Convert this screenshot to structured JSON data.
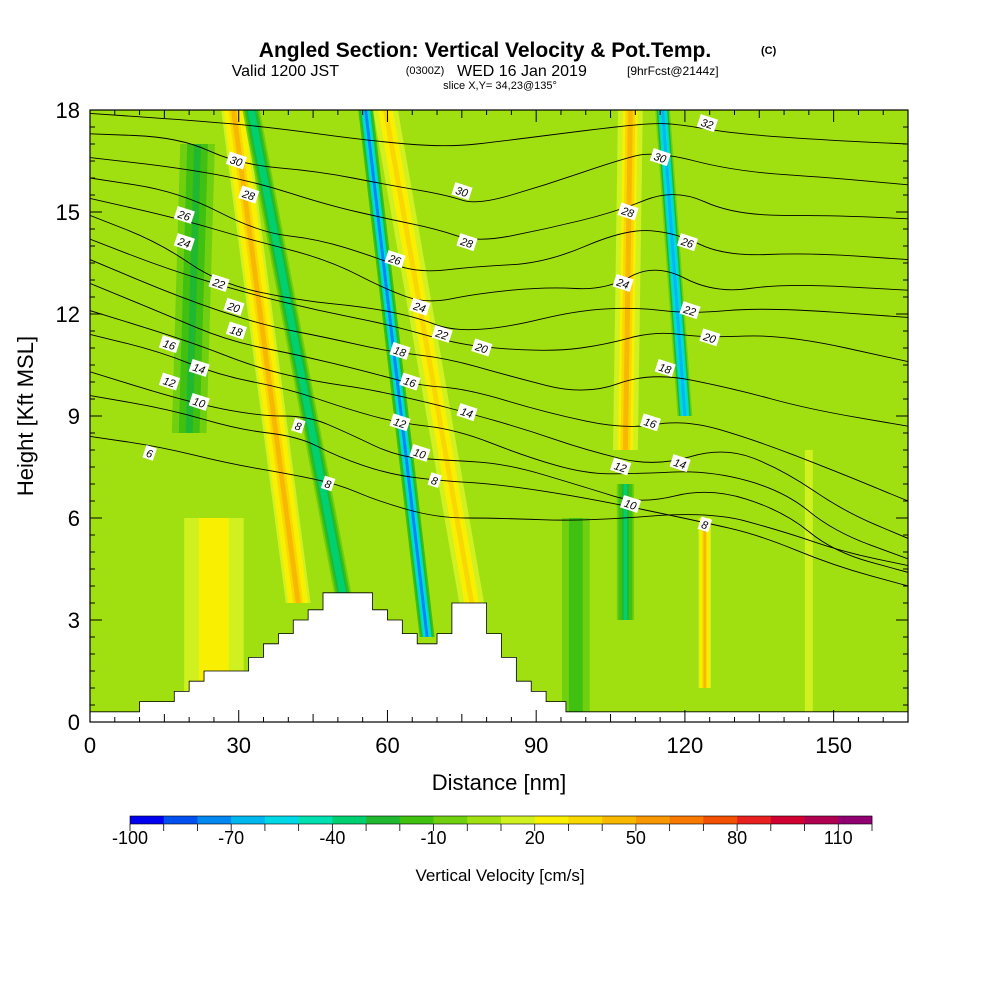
{
  "title": {
    "main": "Angled Section: Vertical Velocity & Pot.Temp.",
    "copyright": "(C)",
    "valid_prefix": "Valid 1200 JST",
    "valid_zulu": "(0300Z)",
    "valid_date": "WED 16 Jan 2019",
    "forecast": "[9hrFcst@2144z]",
    "slice": "slice X,Y= 34,23@135°"
  },
  "chart_data": {
    "type": "heatmap",
    "xlabel": "Distance [nm]",
    "ylabel": "Height [Kft MSL]",
    "xlim": [
      0,
      165
    ],
    "ylim": [
      0,
      18
    ],
    "x_ticks": [
      0,
      30,
      60,
      90,
      120,
      150
    ],
    "y_ticks": [
      0,
      3,
      6,
      9,
      12,
      15,
      18
    ],
    "colorbar": {
      "label": "Vertical Velocity [cm/s]",
      "min": -100,
      "max": 120,
      "step": 10,
      "tick_labels": [
        "-100",
        "-70",
        "-40",
        "-10",
        "20",
        "50",
        "80",
        "110"
      ],
      "colors": [
        "#0000f0",
        "#0050f0",
        "#0088f0",
        "#00b8f0",
        "#00d8e8",
        "#00e0b0",
        "#00d070",
        "#20b830",
        "#40c010",
        "#70d010",
        "#a0e010",
        "#d0f020",
        "#f8f000",
        "#f8d800",
        "#f8b800",
        "#f89800",
        "#f87800",
        "#f05000",
        "#e82020",
        "#d00030",
        "#b00050",
        "#900070"
      ]
    },
    "terrain": [
      [
        0,
        0.3
      ],
      [
        10,
        0.3
      ],
      [
        10,
        0.6
      ],
      [
        17,
        0.6
      ],
      [
        17,
        0.9
      ],
      [
        20,
        0.9
      ],
      [
        20,
        1.2
      ],
      [
        23,
        1.2
      ],
      [
        23,
        1.5
      ],
      [
        32,
        1.5
      ],
      [
        32,
        1.9
      ],
      [
        35,
        1.9
      ],
      [
        35,
        2.3
      ],
      [
        38,
        2.3
      ],
      [
        38,
        2.6
      ],
      [
        41,
        2.6
      ],
      [
        41,
        3.0
      ],
      [
        44,
        3.0
      ],
      [
        44,
        3.3
      ],
      [
        47,
        3.3
      ],
      [
        47,
        3.8
      ],
      [
        57,
        3.8
      ],
      [
        57,
        3.3
      ],
      [
        60,
        3.3
      ],
      [
        60,
        3.0
      ],
      [
        63,
        3.0
      ],
      [
        63,
        2.6
      ],
      [
        66,
        2.6
      ],
      [
        66,
        2.3
      ],
      [
        70,
        2.3
      ],
      [
        70,
        2.6
      ],
      [
        73,
        2.6
      ],
      [
        73,
        3.5
      ],
      [
        80,
        3.5
      ],
      [
        80,
        2.6
      ],
      [
        83,
        2.6
      ],
      [
        83,
        1.9
      ],
      [
        86,
        1.9
      ],
      [
        86,
        1.2
      ],
      [
        89,
        1.2
      ],
      [
        89,
        0.9
      ],
      [
        92,
        0.9
      ],
      [
        92,
        0.6
      ],
      [
        96,
        0.6
      ],
      [
        96,
        0.3
      ],
      [
        165,
        0.3
      ]
    ],
    "velocity_features": [
      {
        "x": 52,
        "y0": 3.0,
        "y1": 18,
        "slope": -1.3,
        "width": 3.5,
        "value": -40
      },
      {
        "x": 68,
        "y0": 2.5,
        "y1": 18,
        "slope": -0.8,
        "width": 3.0,
        "value": -75
      },
      {
        "x": 120,
        "y0": 9.0,
        "y1": 18,
        "slope": -0.5,
        "width": 3.0,
        "value": -70
      },
      {
        "x": 42,
        "y0": 3.5,
        "y1": 18,
        "slope": -0.9,
        "width": 5.0,
        "value": 45
      },
      {
        "x": 77,
        "y0": 3.5,
        "y1": 18,
        "slope": -1.2,
        "width": 5.0,
        "value": 30
      },
      {
        "x": 108,
        "y0": 8.0,
        "y1": 18,
        "slope": 0.1,
        "width": 5.0,
        "value": 40
      },
      {
        "x": 124,
        "y0": 1.0,
        "y1": 6.0,
        "slope": 0.0,
        "width": 2.5,
        "value": 45
      },
      {
        "x": 25,
        "y0": 0.3,
        "y1": 6.0,
        "slope": 0.0,
        "width": 15.0,
        "value": 25
      },
      {
        "x": 20,
        "y0": 8.5,
        "y1": 17,
        "slope": 0.2,
        "width": 7.0,
        "value": -25
      },
      {
        "x": 98,
        "y0": 0.3,
        "y1": 6.0,
        "slope": 0.0,
        "width": 7.0,
        "value": -20
      },
      {
        "x": 108,
        "y0": 3.0,
        "y1": 7.0,
        "slope": 0.0,
        "width": 3.5,
        "value": -35
      },
      {
        "x": 145,
        "y0": 0.3,
        "y1": 8.0,
        "slope": 0.0,
        "width": 8.0,
        "value": 10
      }
    ],
    "isentropes": [
      {
        "level": 6,
        "points": [
          [
            0,
            8.4
          ],
          [
            14,
            8.1
          ],
          [
            28,
            7.6
          ],
          [
            40,
            7.3
          ],
          [
            50,
            7.0
          ],
          [
            58,
            6.5
          ],
          [
            70,
            6.0
          ],
          [
            82,
            6.0
          ],
          [
            100,
            5.9
          ],
          [
            125,
            6.2
          ],
          [
            140,
            5.6
          ],
          [
            152,
            5.0
          ],
          [
            165,
            4.6
          ]
        ]
      },
      {
        "level": 8,
        "points": [
          [
            0,
            9.6
          ],
          [
            16,
            9.2
          ],
          [
            30,
            8.6
          ],
          [
            42,
            8.4
          ],
          [
            50,
            7.8
          ],
          [
            60,
            7.3
          ],
          [
            70,
            7.1
          ],
          [
            82,
            7.0
          ],
          [
            100,
            6.6
          ],
          [
            123,
            5.9
          ],
          [
            135,
            5.5
          ],
          [
            150,
            4.6
          ],
          [
            165,
            4.0
          ]
        ]
      },
      {
        "level": 10,
        "points": [
          [
            0,
            10.3
          ],
          [
            20,
            9.4
          ],
          [
            34,
            9.0
          ],
          [
            44,
            9.0
          ],
          [
            52,
            8.5
          ],
          [
            62,
            7.8
          ],
          [
            72,
            7.7
          ],
          [
            84,
            7.6
          ],
          [
            100,
            6.9
          ],
          [
            111,
            6.4
          ],
          [
            125,
            6.9
          ],
          [
            140,
            6.2
          ],
          [
            150,
            5.0
          ],
          [
            165,
            4.4
          ]
        ]
      },
      {
        "level": 12,
        "points": [
          [
            0,
            11.4
          ],
          [
            14,
            10.9
          ],
          [
            26,
            10.2
          ],
          [
            40,
            9.8
          ],
          [
            52,
            9.2
          ],
          [
            62,
            8.8
          ],
          [
            74,
            8.6
          ],
          [
            88,
            7.8
          ],
          [
            100,
            7.3
          ],
          [
            110,
            7.3
          ],
          [
            125,
            7.4
          ],
          [
            140,
            6.8
          ],
          [
            150,
            5.6
          ],
          [
            165,
            4.8
          ]
        ]
      },
      {
        "level": 14,
        "points": [
          [
            0,
            12.1
          ],
          [
            20,
            11.2
          ],
          [
            34,
            10.4
          ],
          [
            46,
            10.0
          ],
          [
            56,
            9.8
          ],
          [
            68,
            9.4
          ],
          [
            76,
            9.1
          ],
          [
            88,
            8.6
          ],
          [
            100,
            8.0
          ],
          [
            114,
            7.5
          ],
          [
            128,
            8.1
          ],
          [
            140,
            7.4
          ],
          [
            152,
            6.2
          ],
          [
            165,
            5.4
          ]
        ]
      },
      {
        "level": 16,
        "points": [
          [
            0,
            12.9
          ],
          [
            15,
            12.0
          ],
          [
            28,
            11.2
          ],
          [
            42,
            10.8
          ],
          [
            56,
            10.3
          ],
          [
            66,
            9.9
          ],
          [
            76,
            9.8
          ],
          [
            92,
            9.1
          ],
          [
            108,
            8.6
          ],
          [
            120,
            8.9
          ],
          [
            134,
            8.3
          ],
          [
            150,
            7.4
          ],
          [
            165,
            6.5
          ]
        ]
      },
      {
        "level": 18,
        "points": [
          [
            0,
            13.6
          ],
          [
            18,
            12.5
          ],
          [
            34,
            11.7
          ],
          [
            48,
            11.3
          ],
          [
            60,
            10.9
          ],
          [
            72,
            10.7
          ],
          [
            84,
            10.2
          ],
          [
            100,
            9.6
          ],
          [
            113,
            10.3
          ],
          [
            130,
            9.8
          ],
          [
            145,
            9.2
          ],
          [
            165,
            8.7
          ]
        ]
      },
      {
        "level": 20,
        "points": [
          [
            0,
            14.2
          ],
          [
            16,
            13.3
          ],
          [
            32,
            12.6
          ],
          [
            46,
            12.1
          ],
          [
            60,
            11.7
          ],
          [
            72,
            11.2
          ],
          [
            80,
            11.0
          ],
          [
            94,
            10.9
          ],
          [
            104,
            11.1
          ],
          [
            114,
            11.5
          ],
          [
            124,
            11.3
          ],
          [
            140,
            11.4
          ],
          [
            165,
            10.6
          ]
        ]
      },
      {
        "level": 22,
        "points": [
          [
            0,
            14.9
          ],
          [
            14,
            14.1
          ],
          [
            26,
            12.9
          ],
          [
            42,
            12.4
          ],
          [
            56,
            12.2
          ],
          [
            66,
            11.9
          ],
          [
            73,
            11.5
          ],
          [
            84,
            11.6
          ],
          [
            98,
            12.1
          ],
          [
            110,
            12.2
          ],
          [
            121,
            12.0
          ],
          [
            136,
            12.2
          ],
          [
            165,
            11.9
          ]
        ]
      },
      {
        "level": 24,
        "points": [
          [
            0,
            15.4
          ],
          [
            18,
            14.8
          ],
          [
            32,
            14.2
          ],
          [
            48,
            13.6
          ],
          [
            60,
            12.7
          ],
          [
            68,
            12.3
          ],
          [
            78,
            12.6
          ],
          [
            92,
            12.8
          ],
          [
            104,
            12.7
          ],
          [
            114,
            13.5
          ],
          [
            126,
            12.6
          ],
          [
            140,
            12.9
          ],
          [
            165,
            12.7
          ]
        ]
      },
      {
        "level": 26,
        "points": [
          [
            0,
            16.0
          ],
          [
            18,
            15.6
          ],
          [
            34,
            14.4
          ],
          [
            46,
            14.2
          ],
          [
            57,
            13.7
          ],
          [
            66,
            13.2
          ],
          [
            78,
            13.4
          ],
          [
            92,
            13.5
          ],
          [
            108,
            14.5
          ],
          [
            118,
            14.4
          ],
          [
            128,
            13.7
          ],
          [
            145,
            13.8
          ],
          [
            165,
            13.6
          ]
        ]
      },
      {
        "level": 28,
        "points": [
          [
            0,
            16.6
          ],
          [
            18,
            16.3
          ],
          [
            33,
            15.9
          ],
          [
            48,
            15.2
          ],
          [
            60,
            14.8
          ],
          [
            70,
            14.5
          ],
          [
            78,
            14.1
          ],
          [
            92,
            14.5
          ],
          [
            106,
            15.0
          ],
          [
            118,
            15.7
          ],
          [
            130,
            14.9
          ],
          [
            150,
            14.9
          ],
          [
            165,
            14.8
          ]
        ]
      },
      {
        "level": 30,
        "points": [
          [
            0,
            17.3
          ],
          [
            18,
            17.2
          ],
          [
            30,
            16.4
          ],
          [
            46,
            16.2
          ],
          [
            60,
            15.8
          ],
          [
            72,
            15.5
          ],
          [
            78,
            15.2
          ],
          [
            92,
            15.8
          ],
          [
            106,
            16.5
          ],
          [
            114,
            16.8
          ],
          [
            130,
            16.2
          ],
          [
            150,
            16.0
          ],
          [
            165,
            15.8
          ]
        ]
      },
      {
        "level": 32,
        "points": [
          [
            0,
            17.9
          ],
          [
            20,
            17.7
          ],
          [
            36,
            17.5
          ],
          [
            56,
            17.1
          ],
          [
            72,
            16.9
          ],
          [
            84,
            17.1
          ],
          [
            100,
            17.4
          ],
          [
            112,
            17.6
          ],
          [
            118,
            17.6
          ],
          [
            130,
            17.3
          ],
          [
            150,
            17.1
          ],
          [
            165,
            17.0
          ]
        ]
      }
    ],
    "contour_labels": [
      {
        "text": "30",
        "x": 29.5,
        "y": 16.5
      },
      {
        "text": "28",
        "x": 32,
        "y": 15.5
      },
      {
        "text": "26",
        "x": 19,
        "y": 14.9
      },
      {
        "text": "24",
        "x": 19,
        "y": 14.1
      },
      {
        "text": "22",
        "x": 26,
        "y": 12.9
      },
      {
        "text": "20",
        "x": 29,
        "y": 12.2
      },
      {
        "text": "18",
        "x": 29.5,
        "y": 11.5
      },
      {
        "text": "16",
        "x": 16,
        "y": 11.1
      },
      {
        "text": "14",
        "x": 22,
        "y": 10.4
      },
      {
        "text": "12",
        "x": 16,
        "y": 10.0
      },
      {
        "text": "10",
        "x": 22,
        "y": 9.4
      },
      {
        "text": "8",
        "x": 42,
        "y": 8.7
      },
      {
        "text": "6",
        "x": 12,
        "y": 7.9
      },
      {
        "text": "8",
        "x": 48,
        "y": 7.0
      },
      {
        "text": "30",
        "x": 75,
        "y": 15.6
      },
      {
        "text": "28",
        "x": 76,
        "y": 14.1
      },
      {
        "text": "26",
        "x": 61.5,
        "y": 13.6
      },
      {
        "text": "24",
        "x": 66.5,
        "y": 12.2
      },
      {
        "text": "22",
        "x": 71,
        "y": 11.4
      },
      {
        "text": "20",
        "x": 79,
        "y": 11.0
      },
      {
        "text": "18",
        "x": 62.5,
        "y": 10.9
      },
      {
        "text": "16",
        "x": 64.5,
        "y": 10.0
      },
      {
        "text": "14",
        "x": 76,
        "y": 9.1
      },
      {
        "text": "12",
        "x": 62.5,
        "y": 8.8
      },
      {
        "text": "10",
        "x": 66.5,
        "y": 7.9
      },
      {
        "text": "8",
        "x": 69.5,
        "y": 7.1
      },
      {
        "text": "32",
        "x": 124.5,
        "y": 17.6
      },
      {
        "text": "30",
        "x": 115,
        "y": 16.6
      },
      {
        "text": "28",
        "x": 108.5,
        "y": 15.0
      },
      {
        "text": "26",
        "x": 120.5,
        "y": 14.1
      },
      {
        "text": "24",
        "x": 107.5,
        "y": 12.9
      },
      {
        "text": "22",
        "x": 121,
        "y": 12.1
      },
      {
        "text": "20",
        "x": 125,
        "y": 11.3
      },
      {
        "text": "18",
        "x": 116,
        "y": 10.4
      },
      {
        "text": "16",
        "x": 113,
        "y": 8.8
      },
      {
        "text": "14",
        "x": 119,
        "y": 7.6
      },
      {
        "text": "12",
        "x": 107,
        "y": 7.5
      },
      {
        "text": "10",
        "x": 109,
        "y": 6.4
      },
      {
        "text": "8",
        "x": 124,
        "y": 5.8
      }
    ]
  }
}
